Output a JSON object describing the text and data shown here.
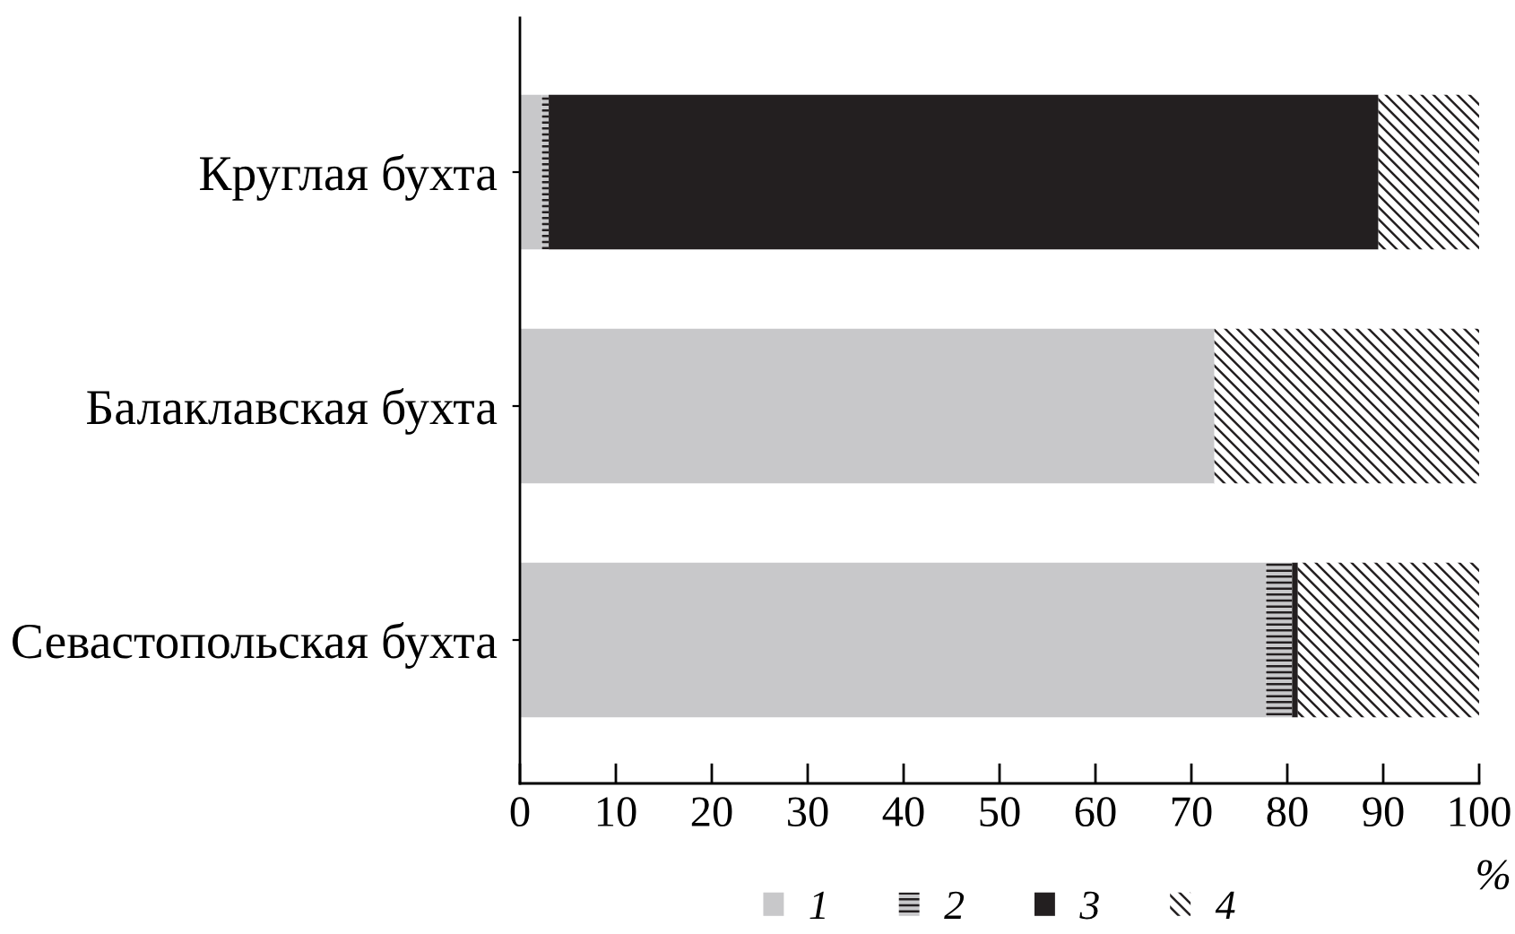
{
  "chart_data": {
    "type": "bar",
    "orientation": "horizontal",
    "stacked": true,
    "categories": [
      "Круглая бухта",
      "Балаклавская бухта",
      "Севастопольская бухта"
    ],
    "series": [
      {
        "name": "1",
        "color": "#c8c8ca",
        "values": [
          2.3,
          72.4,
          77.8
        ]
      },
      {
        "name": "2",
        "color": "#c8c8ca",
        "values": [
          0.7,
          0,
          2.7
        ]
      },
      {
        "name": "3",
        "color": "#231f20",
        "values": [
          86.5,
          0,
          0.6
        ]
      },
      {
        "name": "4",
        "color": "#ffffff",
        "values": [
          10.5,
          27.6,
          18.9
        ]
      }
    ],
    "xlabel": "%",
    "xlim": [
      0,
      100
    ],
    "xticks": [
      0,
      10,
      20,
      30,
      40,
      50,
      60,
      70,
      80,
      90,
      100
    ],
    "legend": "bottom",
    "grid": false
  }
}
